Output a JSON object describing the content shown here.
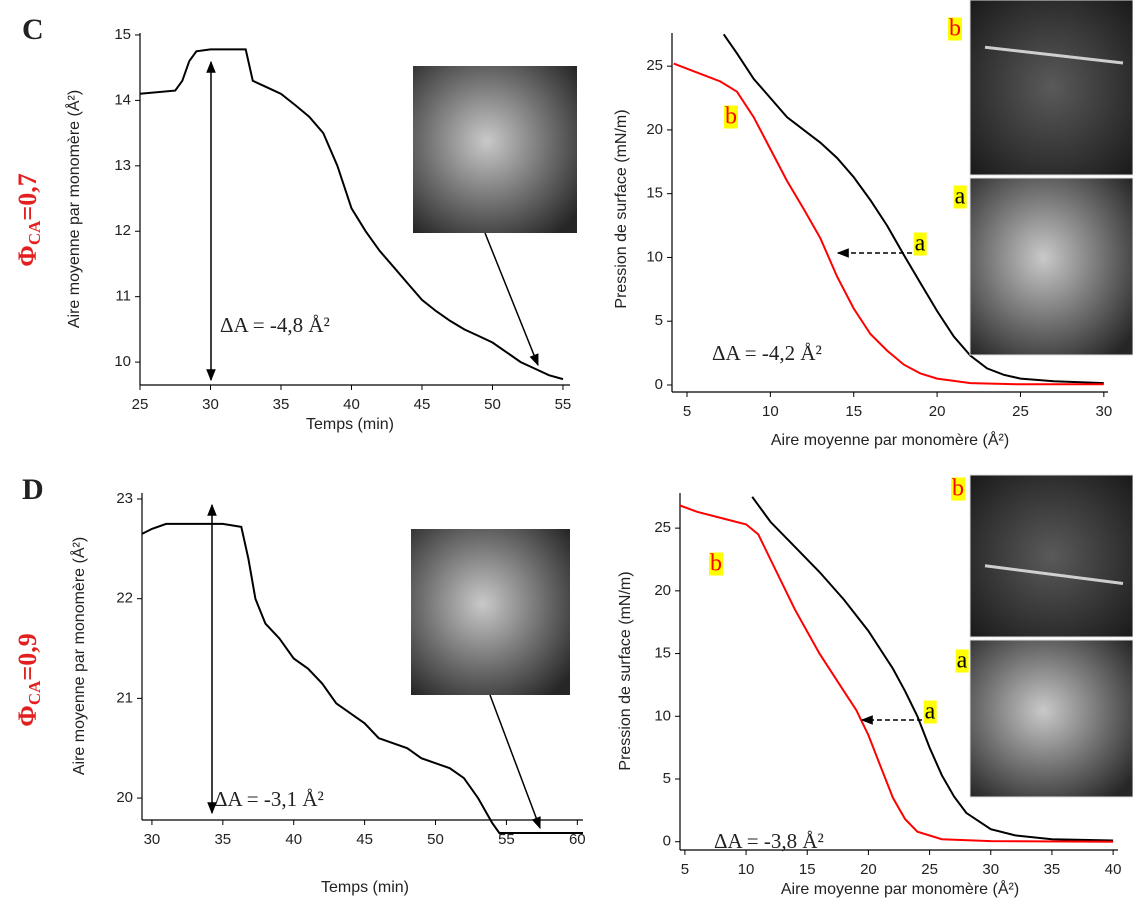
{
  "chart_data": [
    {
      "type": "line",
      "panel": "C",
      "side_label": {
        "symbol": "Φ",
        "sub": "CA",
        "rest": "=0,7"
      },
      "x_label": "Temps (min)",
      "y_label": "Aire moyenne par monomère (Å²)",
      "xlim": [
        25,
        55.5
      ],
      "xticks": [
        25,
        30,
        35,
        40,
        45,
        50,
        55
      ],
      "ylim": [
        9.65,
        15.03
      ],
      "yticks": [
        10,
        11,
        12,
        13,
        14,
        15
      ],
      "annotation": "ΔA = -4,8 Å²",
      "series": [
        {
          "color": "#000000",
          "x": [
            25,
            27.5,
            28,
            28.5,
            29,
            30,
            32.5,
            33,
            34,
            35,
            36,
            37,
            38,
            39,
            40,
            41,
            42,
            43,
            44,
            45,
            46,
            47,
            48,
            49,
            50,
            51,
            52,
            53,
            54,
            55
          ],
          "values": [
            14.1,
            14.15,
            14.3,
            14.6,
            14.75,
            14.78,
            14.78,
            14.3,
            14.2,
            14.1,
            13.93,
            13.75,
            13.5,
            13.0,
            12.35,
            12.0,
            11.7,
            11.45,
            11.2,
            10.95,
            10.78,
            10.63,
            10.5,
            10.4,
            10.3,
            10.15,
            10.0,
            9.9,
            9.8,
            9.74
          ]
        }
      ]
    },
    {
      "type": "line",
      "x_label": "Aire moyenne par monomère (Å²)",
      "y_label": "Pression de surface (mN/m)",
      "xlim": [
        4.1,
        30.25
      ],
      "xticks": [
        5,
        10,
        15,
        20,
        25,
        30
      ],
      "ylim": [
        -0.55,
        27.6
      ],
      "yticks": [
        0,
        5,
        10,
        15,
        20,
        25
      ],
      "annotation": "ΔA = -4,2 Å²",
      "curve_labels": [
        "b",
        "a"
      ],
      "inset_labels": [
        "b",
        "a"
      ],
      "series": [
        {
          "color": "#000000",
          "x": [
            7.2,
            8,
            9,
            10,
            11,
            12,
            13,
            14,
            15,
            16,
            17,
            18,
            19,
            20,
            21,
            22,
            23,
            24,
            25,
            27,
            30
          ],
          "values": [
            27.5,
            26,
            24,
            22.5,
            21,
            20,
            19,
            17.8,
            16.3,
            14.5,
            12.5,
            10.2,
            8,
            5.8,
            3.8,
            2.3,
            1.3,
            0.8,
            0.5,
            0.3,
            0.15
          ]
        },
        {
          "color": "#ff0000",
          "x": [
            4.2,
            5,
            6,
            7,
            8,
            9,
            10,
            11,
            12,
            13,
            14,
            15,
            16,
            17,
            18,
            19,
            20,
            22,
            25,
            30
          ],
          "values": [
            25.2,
            24.8,
            24.3,
            23.8,
            23,
            21,
            18.5,
            16,
            13.8,
            11.5,
            8.5,
            6,
            4,
            2.7,
            1.6,
            0.9,
            0.5,
            0.15,
            0.05,
            0.05
          ]
        }
      ]
    },
    {
      "type": "line",
      "panel": "D",
      "side_label": {
        "symbol": "Φ",
        "sub": "CA",
        "rest": "=0,9"
      },
      "x_label": "Temps (min)",
      "y_label": "Aire moyenne par monomère (Å²)",
      "xlim": [
        29.3,
        60.4
      ],
      "xticks": [
        30,
        35,
        40,
        45,
        50,
        55,
        60
      ],
      "ylim": [
        19.78,
        23.06
      ],
      "yticks": [
        20,
        21,
        22,
        23
      ],
      "annotation": "ΔA = -3,1 Å²",
      "series": [
        {
          "color": "#000000",
          "x": [
            29.3,
            30,
            31,
            35,
            36.3,
            36.8,
            37.3,
            38,
            39,
            40,
            41,
            42,
            43,
            44,
            45,
            46,
            47,
            48,
            49,
            50,
            51,
            52,
            53,
            54,
            54.5,
            55,
            60.4
          ],
          "values": [
            22.65,
            22.7,
            22.75,
            22.75,
            22.72,
            22.4,
            22.0,
            21.75,
            21.6,
            21.4,
            21.3,
            21.15,
            20.95,
            20.85,
            20.75,
            20.6,
            20.55,
            20.5,
            20.4,
            20.35,
            20.3,
            20.2,
            20.0,
            19.75,
            19.65,
            19.65,
            19.65
          ]
        }
      ]
    },
    {
      "type": "line",
      "x_label": "Aire moyenne par monomère (Å²)",
      "y_label": "Pression de surface (mN/m)",
      "xlim": [
        4.6,
        40.4
      ],
      "xticks": [
        5,
        10,
        15,
        20,
        25,
        30,
        35,
        40
      ],
      "ylim": [
        -0.66,
        27.8
      ],
      "yticks": [
        0,
        5,
        10,
        15,
        20,
        25
      ],
      "annotation": "ΔA = -3,8 Å²",
      "curve_labels": [
        "b",
        "a"
      ],
      "inset_labels": [
        "b",
        "a"
      ],
      "series": [
        {
          "color": "#000000",
          "x": [
            10.5,
            12,
            14,
            16,
            18,
            20,
            22,
            23,
            24,
            25,
            26,
            27,
            28,
            30,
            32,
            35,
            40
          ],
          "values": [
            27.5,
            25.5,
            23.5,
            21.5,
            19.3,
            16.8,
            13.8,
            12,
            10,
            7.5,
            5.3,
            3.6,
            2.3,
            1.0,
            0.5,
            0.2,
            0.1
          ]
        },
        {
          "color": "#ff0000",
          "x": [
            4.6,
            6,
            8,
            10,
            11,
            12,
            14,
            16,
            18,
            19,
            20,
            21,
            22,
            23,
            24,
            26,
            30,
            40
          ],
          "values": [
            26.8,
            26.3,
            25.8,
            25.3,
            24.5,
            22.5,
            18.5,
            15,
            12,
            10.5,
            8.5,
            6,
            3.5,
            1.8,
            0.8,
            0.2,
            0.05,
            0
          ]
        }
      ]
    }
  ]
}
